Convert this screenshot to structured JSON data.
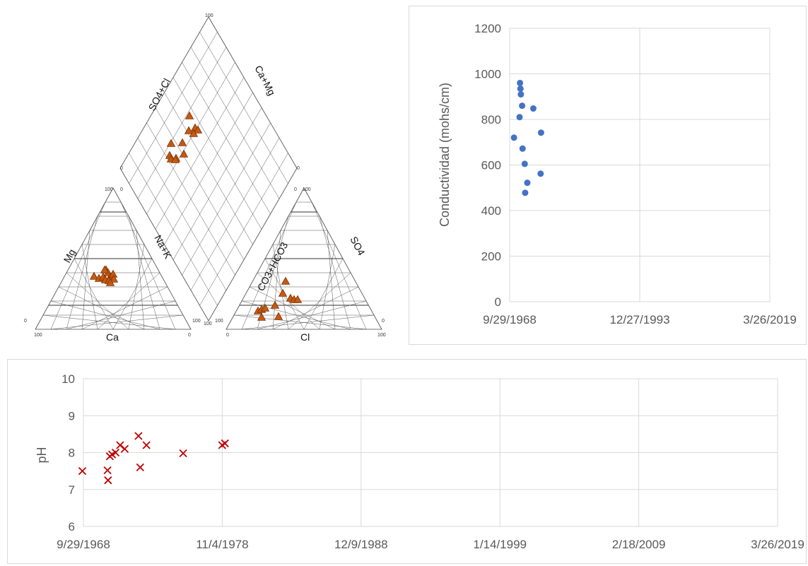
{
  "piper": {
    "labels": {
      "so4_cl": "SO4+Cl",
      "ca_mg": "Ca+Mg",
      "mg": "Mg",
      "na_k": "Na+K",
      "ca": "Ca",
      "co3_hco3": "CO3+HCO3",
      "so4": "SO4",
      "cl": "Cl"
    },
    "ticks": {
      "hundred": "100",
      "zero": "0"
    },
    "marker_color": "#c55a11",
    "marker_stroke": "#7f3000"
  },
  "chart_data": [
    {
      "type": "scatter",
      "title": "",
      "xlabel": "",
      "ylabel": "Conductividad (mohs/cm)",
      "ylim": [
        0,
        1200
      ],
      "yticks": [
        "0",
        "200",
        "400",
        "600",
        "800",
        "1000",
        "1200"
      ],
      "xlim": [
        "9/29/1968",
        "3/26/2019"
      ],
      "xticks": [
        "9/29/1968",
        "12/27/1993",
        "3/26/2019"
      ],
      "grid": true,
      "legend": "none",
      "color": "#4472c4",
      "points": [
        {
          "x": "8/1/1969",
          "y": 720
        },
        {
          "x": "10/1/1970",
          "y": 960
        },
        {
          "x": "11/1/1970",
          "y": 935
        },
        {
          "x": "12/1/1970",
          "y": 910
        },
        {
          "x": "9/1/1970",
          "y": 810
        },
        {
          "x": "3/1/1971",
          "y": 860
        },
        {
          "x": "4/1/1971",
          "y": 672
        },
        {
          "x": "9/1/1971",
          "y": 605
        },
        {
          "x": "3/1/1972",
          "y": 522
        },
        {
          "x": "10/1/1971",
          "y": 478
        },
        {
          "x": "5/1/1973",
          "y": 848
        },
        {
          "x": "11/1/1974",
          "y": 742
        },
        {
          "x": "10/1/1974",
          "y": 562
        }
      ]
    },
    {
      "type": "scatter",
      "title": "",
      "xlabel": "",
      "ylabel": "pH",
      "ylim": [
        6,
        10
      ],
      "yticks": [
        "6",
        "7",
        "8",
        "9",
        "10"
      ],
      "xlim": [
        "9/29/1968",
        "3/26/2019"
      ],
      "xticks": [
        "9/29/1968",
        "11/4/1978",
        "12/9/1988",
        "1/14/1999",
        "2/18/2009",
        "3/26/2019"
      ],
      "grid": true,
      "legend": "none",
      "color": "#c00000",
      "points": [
        {
          "x": "9/1/1968",
          "y": 7.5
        },
        {
          "x": "7/1/1970",
          "y": 7.52
        },
        {
          "x": "7/15/1970",
          "y": 7.25
        },
        {
          "x": "9/1/1970",
          "y": 7.9
        },
        {
          "x": "11/1/1970",
          "y": 7.95
        },
        {
          "x": "2/1/1971",
          "y": 8.0
        },
        {
          "x": "6/1/1971",
          "y": 8.2
        },
        {
          "x": "10/1/1971",
          "y": 8.1
        },
        {
          "x": "10/1/1972",
          "y": 8.45
        },
        {
          "x": "11/15/1972",
          "y": 7.6
        },
        {
          "x": "5/1/1973",
          "y": 8.2
        },
        {
          "x": "1/1/1976",
          "y": 7.98
        },
        {
          "x": "11/1/1978",
          "y": 8.2
        },
        {
          "x": "1/15/1979",
          "y": 8.25
        }
      ]
    }
  ]
}
